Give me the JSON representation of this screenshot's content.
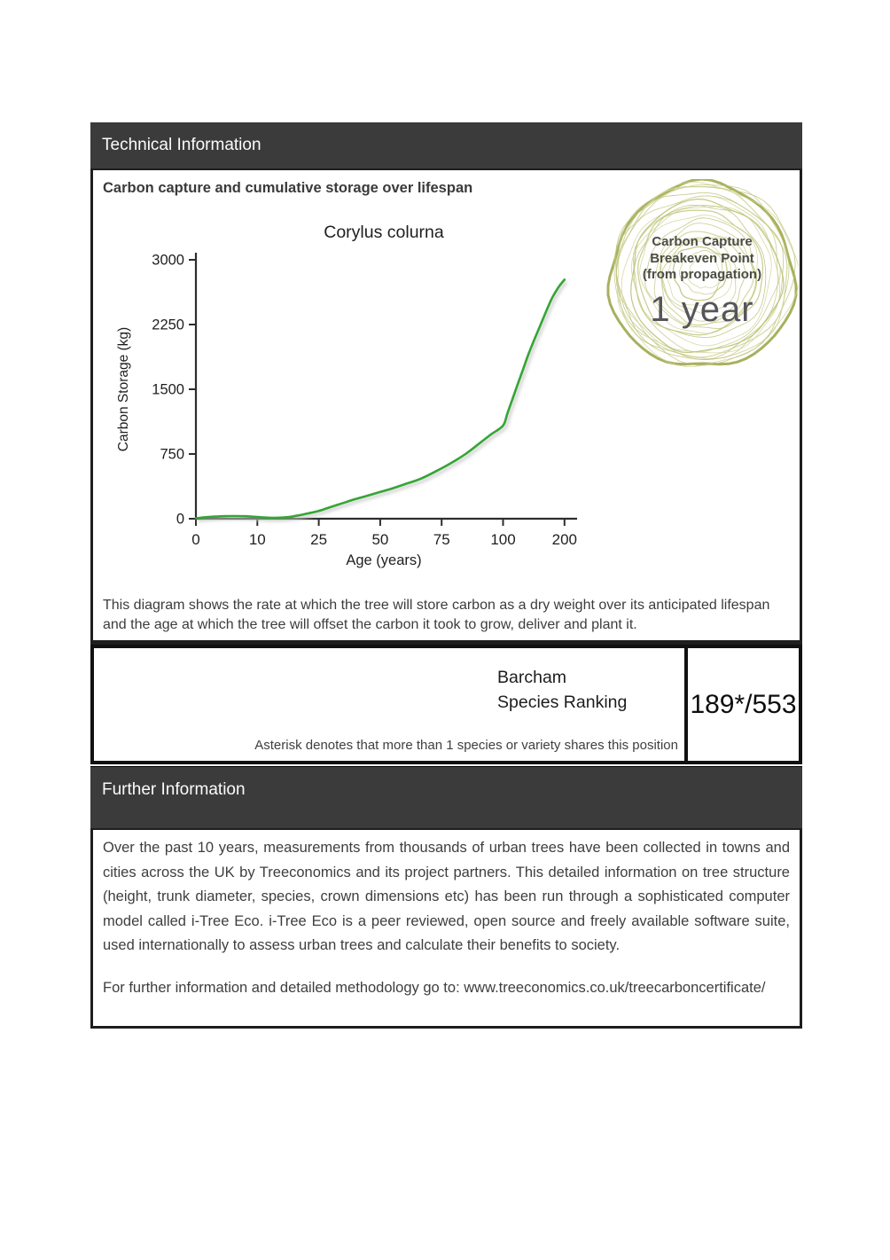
{
  "headers": {
    "technical": "Technical Information",
    "further": "Further Information"
  },
  "technical": {
    "section_title": "Carbon capture and cumulative storage over lifespan",
    "caption": "This diagram shows the rate at which the tree will store carbon as a dry weight over its anticipated lifespan and the age at which the tree will offset the carbon it took to grow, deliver and plant it."
  },
  "stamp": {
    "title_lines": [
      "Carbon Capture",
      "Breakeven Point",
      "(from propagation)"
    ],
    "value": "1 year"
  },
  "ranking": {
    "label_lines": [
      "Barcham",
      "Species Ranking"
    ],
    "value": "189*/553",
    "note": "Asterisk denotes that more than 1 species or variety shares this position"
  },
  "further": {
    "paragraph": "Over the past 10 years, measurements from thousands of urban trees have been collected in towns and cities across the UK by Treeconomics and its project partners. This detailed information on tree structure (height, trunk diameter, species, crown dimensions etc) has been run through a sophisticated computer model called i-Tree Eco. i-Tree Eco is a peer reviewed, open source and freely available software suite, used internationally to assess urban trees and calculate their benefits to society.",
    "link_line": "For further information and detailed methodology go to: www.treeconomics.co.uk/treecarboncertificate/"
  },
  "colors": {
    "header_bar": "#3b3b3b",
    "line_green": "#35a535",
    "ring_olive_outer": "#a9b05e",
    "ring_olive_inner": "#c6cb85",
    "border_black": "#1e1e1e"
  },
  "chart_data": {
    "type": "line",
    "title": "Corylus colurna",
    "xlabel": "Age (years)",
    "ylabel": "Carbon Storage (kg)",
    "x_ticks": [
      0,
      10,
      25,
      50,
      75,
      100,
      200
    ],
    "x_axis_note": "ticks equally spaced (non-linear age scale)",
    "y_ticks": [
      0,
      750,
      1500,
      2250,
      3000
    ],
    "ylim": [
      0,
      3000
    ],
    "grid": false,
    "legend": false,
    "line_color": "#35a535",
    "series": [
      {
        "name": "Cumulative carbon storage (kg)",
        "points": [
          [
            0,
            5
          ],
          [
            2,
            20
          ],
          [
            4,
            28
          ],
          [
            6,
            31
          ],
          [
            8,
            29
          ],
          [
            10,
            20
          ],
          [
            12,
            13
          ],
          [
            14,
            10
          ],
          [
            16,
            13
          ],
          [
            18,
            22
          ],
          [
            20,
            38
          ],
          [
            22,
            58
          ],
          [
            25,
            90
          ],
          [
            28,
            118
          ],
          [
            32,
            155
          ],
          [
            36,
            192
          ],
          [
            40,
            228
          ],
          [
            45,
            268
          ],
          [
            50,
            310
          ],
          [
            55,
            352
          ],
          [
            60,
            400
          ],
          [
            67,
            470
          ],
          [
            75,
            585
          ],
          [
            80,
            665
          ],
          [
            85,
            755
          ],
          [
            90,
            865
          ],
          [
            95,
            975
          ],
          [
            100,
            1080
          ],
          [
            107,
            1220
          ],
          [
            115,
            1380
          ],
          [
            123,
            1540
          ],
          [
            132,
            1720
          ],
          [
            141,
            1900
          ],
          [
            150,
            2060
          ],
          [
            160,
            2230
          ],
          [
            170,
            2400
          ],
          [
            180,
            2560
          ],
          [
            190,
            2680
          ],
          [
            200,
            2770
          ]
        ]
      }
    ]
  }
}
